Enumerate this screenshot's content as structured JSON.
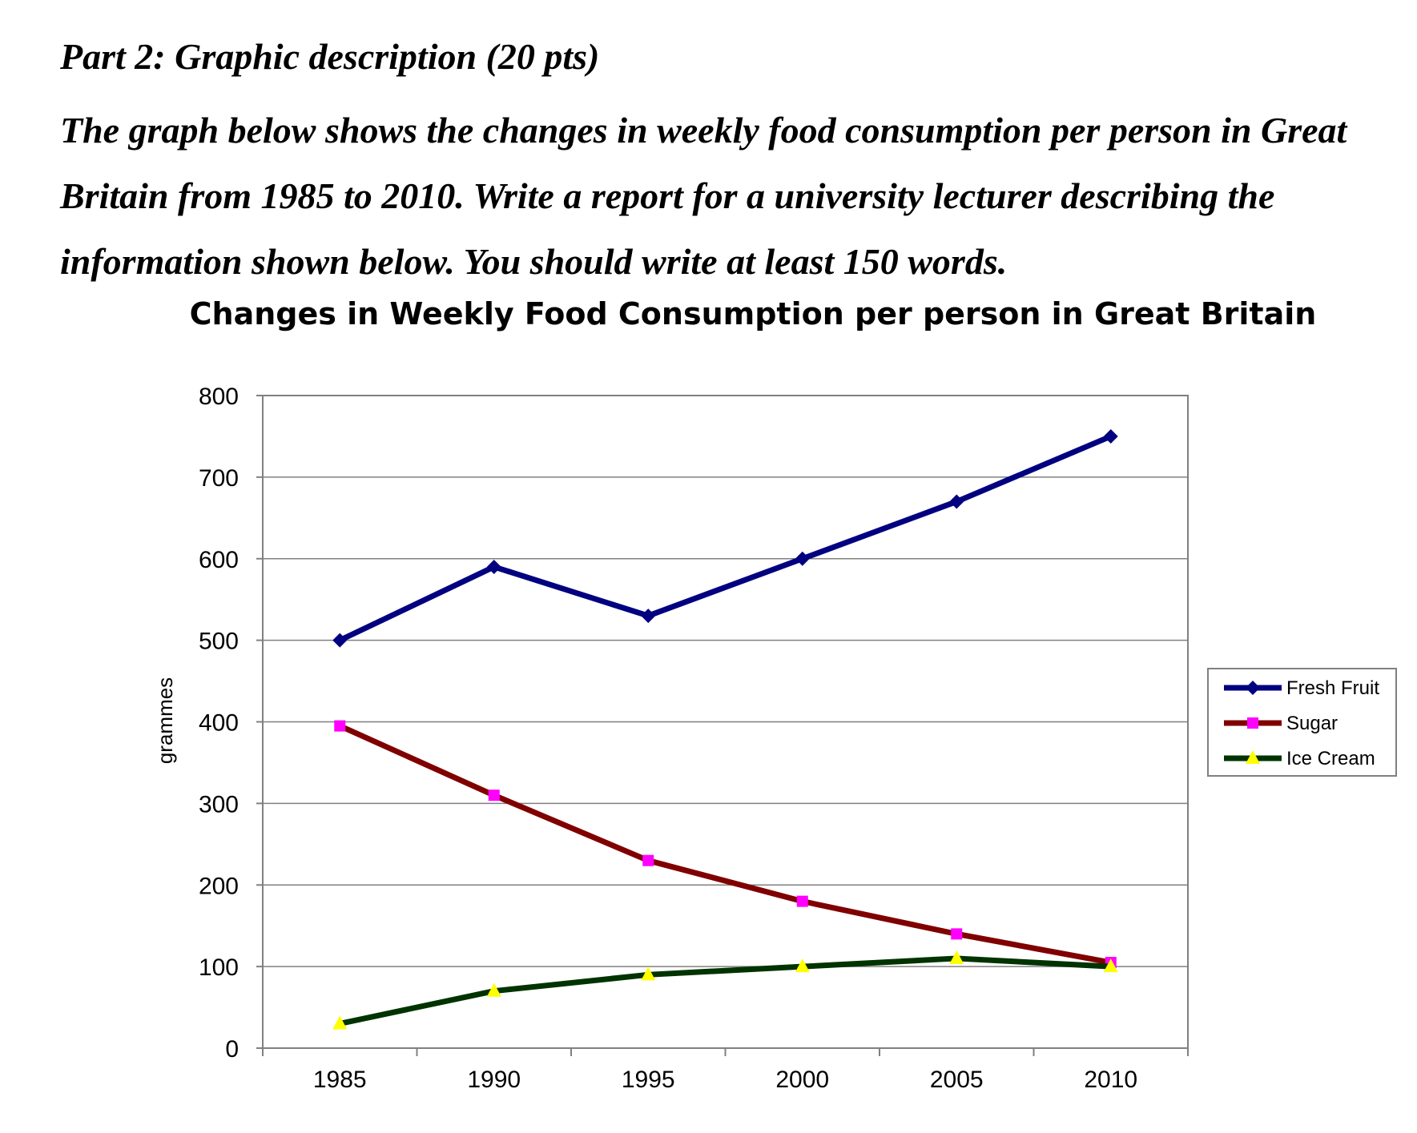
{
  "prompt": {
    "heading": "Part 2: Graphic description (20 pts)",
    "task": "The graph below shows the changes in weekly food consumption per person in Great Britain from 1985 to 2010. Write a report for a university lecturer describing the information shown below. You should write at least 150 words."
  },
  "chart_data": {
    "type": "line",
    "title": "Changes in Weekly Food Consumption per person in Great Britain",
    "xlabel": "",
    "ylabel": "grammes",
    "categories": [
      "1985",
      "1990",
      "1995",
      "2000",
      "2005",
      "2010"
    ],
    "ylim": [
      0,
      800
    ],
    "yticks": [
      0,
      100,
      200,
      300,
      400,
      500,
      600,
      700,
      800
    ],
    "grid": true,
    "legend_position": "right",
    "series": [
      {
        "name": "Fresh Fruit",
        "values": [
          500,
          590,
          530,
          600,
          670,
          750
        ],
        "color": "#000080",
        "marker": "diamond",
        "marker_color": "#000080"
      },
      {
        "name": "Sugar",
        "values": [
          395,
          310,
          230,
          180,
          140,
          105
        ],
        "color": "#800000",
        "marker": "square",
        "marker_color": "#ff00ff"
      },
      {
        "name": "Ice Cream",
        "values": [
          30,
          70,
          90,
          100,
          110,
          100
        ],
        "color": "#003300",
        "marker": "triangle",
        "marker_color": "#ffff00"
      }
    ]
  }
}
